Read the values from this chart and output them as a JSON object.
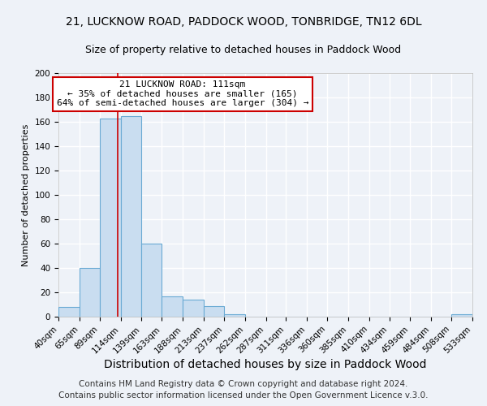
{
  "title1": "21, LUCKNOW ROAD, PADDOCK WOOD, TONBRIDGE, TN12 6DL",
  "title2": "Size of property relative to detached houses in Paddock Wood",
  "xlabel": "Distribution of detached houses by size in Paddock Wood",
  "ylabel": "Number of detached properties",
  "bin_edges": [
    40,
    65,
    89,
    114,
    139,
    163,
    188,
    213,
    237,
    262,
    287,
    311,
    336,
    360,
    385,
    410,
    434,
    459,
    484,
    508,
    533
  ],
  "bar_heights": [
    8,
    40,
    163,
    165,
    60,
    17,
    14,
    9,
    2,
    0,
    0,
    0,
    0,
    0,
    0,
    0,
    0,
    0,
    0,
    2
  ],
  "bar_color": "#c9ddf0",
  "bar_edge_color": "#6aaad4",
  "property_line_x": 111,
  "property_line_color": "#cc0000",
  "annotation_title": "21 LUCKNOW ROAD: 111sqm",
  "annotation_line1": "← 35% of detached houses are smaller (165)",
  "annotation_line2": "64% of semi-detached houses are larger (304) →",
  "annotation_box_color": "#ffffff",
  "annotation_box_edge": "#cc0000",
  "ylim": [
    0,
    200
  ],
  "yticks": [
    0,
    20,
    40,
    60,
    80,
    100,
    120,
    140,
    160,
    180,
    200
  ],
  "x_tick_labels": [
    "40sqm",
    "65sqm",
    "89sqm",
    "114sqm",
    "139sqm",
    "163sqm",
    "188sqm",
    "213sqm",
    "237sqm",
    "262sqm",
    "287sqm",
    "311sqm",
    "336sqm",
    "360sqm",
    "385sqm",
    "410sqm",
    "434sqm",
    "459sqm",
    "484sqm",
    "508sqm",
    "533sqm"
  ],
  "footer1": "Contains HM Land Registry data © Crown copyright and database right 2024.",
  "footer2": "Contains public sector information licensed under the Open Government Licence v.3.0.",
  "background_color": "#eef2f8",
  "grid_color": "#ffffff",
  "title1_fontsize": 10,
  "title2_fontsize": 9,
  "xlabel_fontsize": 10,
  "ylabel_fontsize": 8,
  "tick_fontsize": 7.5,
  "footer_fontsize": 7.5
}
